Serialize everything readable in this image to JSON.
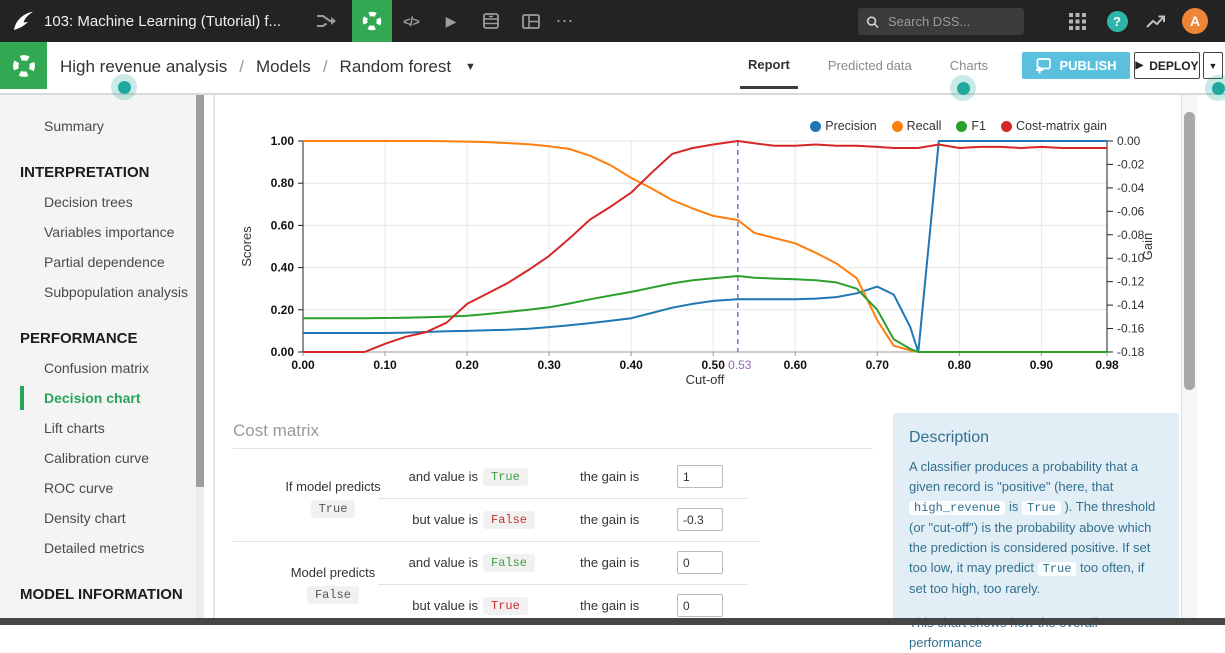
{
  "topbar": {
    "title": "103: Machine Learning (Tutorial) f...",
    "search_placeholder": "Search DSS...",
    "avatar_letter": "A",
    "icons": {
      "code": "</>",
      "play": "▶",
      "more": "⋯",
      "help": "?"
    }
  },
  "header": {
    "breadcrumb": {
      "project": "High revenue analysis",
      "separator": "/",
      "section": "Models",
      "item": "Random forest"
    },
    "icons": {
      "caret": "▼",
      "deploy_play": "▶"
    },
    "tabs": [
      {
        "label": "Report",
        "active": true
      },
      {
        "label": "Predicted data",
        "active": false
      },
      {
        "label": "Charts",
        "active": false
      }
    ],
    "publish_label": "PUBLISH",
    "deploy_label": "DEPLOY"
  },
  "sidebar": {
    "items": [
      {
        "label": "Summary",
        "type": "item",
        "active": false
      },
      {
        "label": "INTERPRETATION",
        "type": "heading"
      },
      {
        "label": "Decision trees",
        "type": "item",
        "active": false
      },
      {
        "label": "Variables importance",
        "type": "item",
        "active": false
      },
      {
        "label": "Partial dependence",
        "type": "item",
        "active": false
      },
      {
        "label": "Subpopulation analysis",
        "type": "item",
        "active": false
      },
      {
        "label": "PERFORMANCE",
        "type": "heading"
      },
      {
        "label": "Confusion matrix",
        "type": "item",
        "active": false
      },
      {
        "label": "Decision chart",
        "type": "item",
        "active": true
      },
      {
        "label": "Lift charts",
        "type": "item",
        "active": false
      },
      {
        "label": "Calibration curve",
        "type": "item",
        "active": false
      },
      {
        "label": "ROC curve",
        "type": "item",
        "active": false
      },
      {
        "label": "Density chart",
        "type": "item",
        "active": false
      },
      {
        "label": "Detailed metrics",
        "type": "item",
        "active": false
      },
      {
        "label": "MODEL INFORMATION",
        "type": "heading"
      }
    ]
  },
  "chart_data": {
    "type": "line",
    "title": "",
    "xlabel": "Cut-off",
    "ylabel_left": "Scores",
    "ylabel_right": "Gain",
    "xlim": [
      0,
      0.98
    ],
    "x_ticks": [
      0,
      0.1,
      0.2,
      0.3,
      0.4,
      0.5,
      0.6,
      0.7,
      0.8,
      0.9,
      0.98
    ],
    "ylim_left": [
      0,
      1
    ],
    "y_ticks_left": [
      0,
      0.2,
      0.4,
      0.6,
      0.8,
      1.0
    ],
    "ylim_right": [
      -0.18,
      0
    ],
    "y_ticks_right": [
      0,
      -0.02,
      -0.04,
      -0.06,
      -0.08,
      -0.1,
      -0.12,
      -0.14,
      -0.16,
      -0.18
    ],
    "grid": true,
    "legend_position": "top-right",
    "cutoff": 0.53,
    "cutoff_color": "#9467bd",
    "x": [
      0,
      0.05,
      0.075,
      0.1,
      0.125,
      0.15,
      0.175,
      0.2,
      0.225,
      0.25,
      0.275,
      0.3,
      0.325,
      0.35,
      0.375,
      0.4,
      0.425,
      0.45,
      0.475,
      0.5,
      0.53,
      0.55,
      0.575,
      0.6,
      0.625,
      0.65,
      0.675,
      0.7,
      0.72,
      0.74,
      0.75,
      0.775,
      0.8,
      0.825,
      0.85,
      0.875,
      0.9,
      0.925,
      0.95,
      0.98
    ],
    "series": [
      {
        "name": "Precision",
        "color": "#1f77b4",
        "axis": "left",
        "values": [
          0.09,
          0.09,
          0.09,
          0.09,
          0.092,
          0.095,
          0.098,
          0.1,
          0.103,
          0.105,
          0.11,
          0.118,
          0.127,
          0.137,
          0.148,
          0.16,
          0.185,
          0.21,
          0.228,
          0.242,
          0.25,
          0.25,
          0.25,
          0.25,
          0.253,
          0.26,
          0.278,
          0.31,
          0.272,
          0.12,
          0.0,
          1.0,
          1.0,
          1.0,
          1.0,
          1.0,
          1.0,
          1.0,
          1.0,
          1.0
        ]
      },
      {
        "name": "Recall",
        "color": "#ff7f0e",
        "axis": "left",
        "values": [
          1.0,
          1.0,
          1.0,
          1.0,
          1.0,
          1.0,
          0.999,
          0.997,
          0.995,
          0.99,
          0.985,
          0.975,
          0.962,
          0.93,
          0.885,
          0.825,
          0.775,
          0.72,
          0.68,
          0.645,
          0.625,
          0.565,
          0.54,
          0.515,
          0.47,
          0.42,
          0.35,
          0.15,
          0.03,
          0.008,
          0.0,
          0.0,
          0.0,
          0.0,
          0.0,
          0.0,
          0.0,
          0.0,
          0.0,
          0.0
        ]
      },
      {
        "name": "F1",
        "color": "#2ca02c",
        "axis": "left",
        "values": [
          0.16,
          0.16,
          0.16,
          0.161,
          0.162,
          0.165,
          0.168,
          0.172,
          0.18,
          0.19,
          0.2,
          0.212,
          0.23,
          0.25,
          0.268,
          0.285,
          0.305,
          0.325,
          0.34,
          0.35,
          0.36,
          0.352,
          0.348,
          0.345,
          0.34,
          0.33,
          0.3,
          0.2,
          0.06,
          0.015,
          0.0,
          0.0,
          0.0,
          0.0,
          0.0,
          0.0,
          0.0,
          0.0,
          0.0,
          0.0
        ]
      },
      {
        "name": "Cost-matrix gain",
        "color": "#d62728",
        "axis": "right",
        "values": [
          -0.18,
          -0.18,
          -0.18,
          -0.173,
          -0.167,
          -0.163,
          -0.155,
          -0.139,
          -0.13,
          -0.121,
          -0.11,
          -0.098,
          -0.083,
          -0.067,
          -0.056,
          -0.044,
          -0.027,
          -0.011,
          -0.006,
          -0.003,
          0.0,
          -0.002,
          -0.004,
          -0.004,
          -0.003,
          -0.004,
          -0.004,
          -0.005,
          -0.006,
          -0.006,
          -0.006,
          -0.003,
          -0.006,
          -0.005,
          -0.005,
          -0.006,
          -0.005,
          -0.006,
          -0.006,
          -0.006
        ]
      }
    ]
  },
  "cost_matrix": {
    "title": "Cost matrix",
    "groups": [
      {
        "label": "If model predicts",
        "value": "True",
        "rows": [
          {
            "condition": "and value is",
            "value": "True",
            "correct": true,
            "gain_label": "the gain is",
            "gain_input": "1"
          },
          {
            "condition": "but value is",
            "value": "False",
            "correct": false,
            "gain_label": "the gain is",
            "gain_input": "-0.3"
          }
        ]
      },
      {
        "label": "Model predicts",
        "value": "False",
        "rows": [
          {
            "condition": "and value is",
            "value": "False",
            "correct": true,
            "gain_label": "the gain is",
            "gain_input": "0"
          },
          {
            "condition": "but value is",
            "value": "True",
            "correct": false,
            "gain_label": "the gain is",
            "gain_input": "0"
          }
        ]
      }
    ]
  },
  "description": {
    "title": "Description",
    "paragraph1": [
      {
        "text": "A classifier produces a probability that a given record is \"positive\" (here, that "
      },
      {
        "code": "high_revenue"
      },
      {
        "text": " is "
      },
      {
        "code": "True"
      },
      {
        "text": " ). The threshold (or \"cut-off\") is the probability above which the prediction is considered positive. If set too low, it may predict "
      },
      {
        "code": "True"
      },
      {
        "text": " too often, if set too high, too rarely."
      }
    ],
    "paragraph2": "This chart shows how the overall performance"
  },
  "colors": {
    "accent_green": "#32a852",
    "publish_blue": "#5bc0de",
    "hint_teal": "#1fa99e",
    "avatar_orange": "#ee8435",
    "active_nav_green": "#29a35c"
  }
}
